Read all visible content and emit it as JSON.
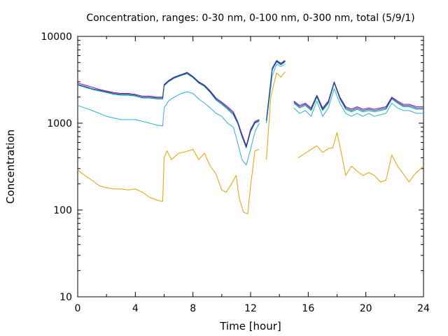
{
  "chart_data": {
    "type": "line",
    "title": "Concentration, ranges: 0-30 nm, 0-100 nm, 0-300 nm, total (5/9/1)",
    "xlabel": "Time [hour]",
    "ylabel": "Concentration",
    "xlim": [
      0,
      24
    ],
    "ylim": [
      10,
      10000
    ],
    "yscale": "log",
    "grid": false,
    "legend": "none",
    "xticks": [
      0,
      4,
      8,
      12,
      16,
      20,
      24
    ],
    "xtick_labels": [
      "0",
      "4",
      "8",
      "12",
      "16",
      "20",
      "24"
    ],
    "yticks": [
      10,
      100,
      1000,
      10000
    ],
    "ytick_labels": [
      "10",
      "100",
      "1000",
      "10000"
    ],
    "series": [
      {
        "color": "#e6a000",
        "points": [
          [
            0,
            290
          ],
          [
            0.5,
            250
          ],
          [
            1,
            220
          ],
          [
            1.5,
            190
          ],
          [
            2,
            180
          ],
          [
            2.5,
            175
          ],
          [
            3,
            175
          ],
          [
            3.5,
            170
          ],
          [
            4,
            175
          ],
          [
            4.5,
            160
          ],
          [
            5,
            140
          ],
          [
            5.5,
            130
          ],
          [
            5.9,
            125
          ],
          [
            6,
            400
          ],
          [
            6.2,
            480
          ],
          [
            6.5,
            380
          ],
          [
            7,
            450
          ],
          [
            7.5,
            470
          ],
          [
            8,
            500
          ],
          [
            8.4,
            380
          ],
          [
            8.8,
            450
          ],
          [
            9.2,
            320
          ],
          [
            9.6,
            260
          ],
          [
            10,
            170
          ],
          [
            10.3,
            160
          ],
          [
            10.6,
            190
          ],
          [
            11,
            250
          ],
          [
            11.2,
            140
          ],
          [
            11.5,
            95
          ],
          [
            11.8,
            90
          ],
          [
            12,
            190
          ],
          [
            12.3,
            480
          ],
          [
            12.6,
            500
          ],
          null,
          [
            13.1,
            380
          ],
          [
            13.4,
            2000
          ],
          [
            13.8,
            3800
          ],
          [
            14.1,
            3400
          ],
          [
            14.4,
            3900
          ],
          null,
          [
            15.3,
            400
          ],
          [
            15.8,
            450
          ],
          [
            16.2,
            500
          ],
          [
            16.6,
            550
          ],
          [
            17,
            460
          ],
          [
            17.4,
            510
          ],
          [
            17.7,
            520
          ],
          [
            18,
            780
          ],
          [
            18.3,
            450
          ],
          [
            18.6,
            250
          ],
          [
            19,
            320
          ],
          [
            19.4,
            280
          ],
          [
            19.8,
            250
          ],
          [
            20.2,
            270
          ],
          [
            20.6,
            250
          ],
          [
            21,
            210
          ],
          [
            21.4,
            220
          ],
          [
            21.8,
            430
          ],
          [
            22.2,
            320
          ],
          [
            22.6,
            260
          ],
          [
            23,
            210
          ],
          [
            23.4,
            260
          ],
          [
            24,
            320
          ]
        ]
      },
      {
        "color": "#2ab0d8",
        "points": [
          [
            0,
            1600
          ],
          [
            0.5,
            1500
          ],
          [
            1,
            1400
          ],
          [
            1.5,
            1300
          ],
          [
            2,
            1200
          ],
          [
            2.5,
            1150
          ],
          [
            3,
            1100
          ],
          [
            3.5,
            1100
          ],
          [
            4,
            1100
          ],
          [
            4.5,
            1050
          ],
          [
            5,
            1000
          ],
          [
            5.5,
            950
          ],
          [
            5.9,
            930
          ],
          [
            6,
            1500
          ],
          [
            6.3,
            1800
          ],
          [
            6.7,
            2000
          ],
          [
            7.2,
            2200
          ],
          [
            7.6,
            2300
          ],
          [
            8,
            2200
          ],
          [
            8.4,
            1900
          ],
          [
            8.8,
            1700
          ],
          [
            9.2,
            1500
          ],
          [
            9.6,
            1300
          ],
          [
            10,
            1200
          ],
          [
            10.4,
            1000
          ],
          [
            10.8,
            900
          ],
          [
            11.1,
            600
          ],
          [
            11.4,
            380
          ],
          [
            11.7,
            330
          ],
          [
            12,
            500
          ],
          [
            12.3,
            800
          ],
          [
            12.6,
            1000
          ],
          null,
          [
            13.1,
            1000
          ],
          [
            13.5,
            3500
          ],
          [
            13.8,
            4800
          ],
          [
            14.1,
            4500
          ],
          [
            14.4,
            4800
          ],
          null,
          [
            15,
            1500
          ],
          [
            15.4,
            1300
          ],
          [
            15.8,
            1400
          ],
          [
            16.2,
            1200
          ],
          [
            16.6,
            1800
          ],
          [
            17,
            1200
          ],
          [
            17.4,
            1500
          ],
          [
            17.8,
            2500
          ],
          [
            18.2,
            1700
          ],
          [
            18.6,
            1300
          ],
          [
            19,
            1200
          ],
          [
            19.4,
            1300
          ],
          [
            19.8,
            1200
          ],
          [
            20.2,
            1300
          ],
          [
            20.6,
            1200
          ],
          [
            21,
            1250
          ],
          [
            21.4,
            1300
          ],
          [
            21.8,
            1700
          ],
          [
            22.2,
            1500
          ],
          [
            22.6,
            1400
          ],
          [
            23,
            1400
          ],
          [
            23.5,
            1300
          ],
          [
            24,
            1300
          ]
        ]
      },
      {
        "color": "#009e73",
        "points": [
          [
            0,
            2750
          ],
          [
            0.5,
            2600
          ],
          [
            1,
            2450
          ],
          [
            1.5,
            2350
          ],
          [
            2,
            2250
          ],
          [
            2.5,
            2150
          ],
          [
            3,
            2100
          ],
          [
            3.5,
            2100
          ],
          [
            4,
            2050
          ],
          [
            4.5,
            1950
          ],
          [
            5,
            1950
          ],
          [
            5.5,
            1900
          ],
          [
            5.9,
            1900
          ],
          [
            6,
            2700
          ],
          [
            6.3,
            3000
          ],
          [
            6.7,
            3300
          ],
          [
            7.2,
            3550
          ],
          [
            7.6,
            3700
          ],
          [
            8,
            3350
          ],
          [
            8.4,
            2900
          ],
          [
            8.8,
            2650
          ],
          [
            9.2,
            2250
          ],
          [
            9.6,
            1850
          ],
          [
            10,
            1650
          ],
          [
            10.4,
            1450
          ],
          [
            10.8,
            1250
          ],
          [
            11.1,
            1000
          ],
          [
            11.4,
            700
          ],
          [
            11.7,
            520
          ],
          [
            12,
            800
          ],
          [
            12.3,
            1000
          ],
          [
            12.6,
            1050
          ],
          null,
          [
            13.1,
            1050
          ],
          [
            13.5,
            4100
          ],
          [
            13.8,
            5100
          ],
          [
            14.1,
            4700
          ],
          [
            14.4,
            5100
          ],
          null,
          [
            15,
            1700
          ],
          [
            15.4,
            1500
          ],
          [
            15.8,
            1600
          ],
          [
            16.2,
            1400
          ],
          [
            16.6,
            2000
          ],
          [
            17,
            1400
          ],
          [
            17.4,
            1700
          ],
          [
            17.8,
            2900
          ],
          [
            18.2,
            1900
          ],
          [
            18.6,
            1450
          ],
          [
            19,
            1350
          ],
          [
            19.4,
            1450
          ],
          [
            19.8,
            1350
          ],
          [
            20.2,
            1400
          ],
          [
            20.6,
            1350
          ],
          [
            21,
            1400
          ],
          [
            21.4,
            1450
          ],
          [
            21.8,
            1900
          ],
          [
            22.2,
            1700
          ],
          [
            22.6,
            1550
          ],
          [
            23,
            1550
          ],
          [
            23.5,
            1450
          ],
          [
            24,
            1450
          ]
        ]
      },
      {
        "color": "#9400d3",
        "points": [
          [
            0,
            2900
          ],
          [
            0.5,
            2750
          ],
          [
            1,
            2600
          ],
          [
            1.5,
            2450
          ],
          [
            2,
            2350
          ],
          [
            2.5,
            2250
          ],
          [
            3,
            2200
          ],
          [
            3.5,
            2200
          ],
          [
            4,
            2150
          ],
          [
            4.5,
            2050
          ],
          [
            5,
            2050
          ],
          [
            5.5,
            2000
          ],
          [
            5.9,
            2000
          ],
          [
            6,
            2800
          ],
          [
            6.3,
            3100
          ],
          [
            6.7,
            3400
          ],
          [
            7.2,
            3650
          ],
          [
            7.6,
            3850
          ],
          [
            8,
            3450
          ],
          [
            8.4,
            3000
          ],
          [
            8.8,
            2750
          ],
          [
            9.2,
            2350
          ],
          [
            9.6,
            1950
          ],
          [
            10,
            1750
          ],
          [
            10.4,
            1550
          ],
          [
            10.8,
            1350
          ],
          [
            11.1,
            1050
          ],
          [
            11.4,
            750
          ],
          [
            11.7,
            550
          ],
          [
            12,
            850
          ],
          [
            12.3,
            1050
          ],
          [
            12.6,
            1100
          ],
          null,
          [
            13.1,
            1100
          ],
          [
            13.5,
            4300
          ],
          [
            13.8,
            5300
          ],
          [
            14.1,
            4900
          ],
          [
            14.4,
            5300
          ],
          null,
          [
            15,
            1800
          ],
          [
            15.4,
            1600
          ],
          [
            15.8,
            1700
          ],
          [
            16.2,
            1500
          ],
          [
            16.6,
            2100
          ],
          [
            17,
            1500
          ],
          [
            17.4,
            1800
          ],
          [
            17.8,
            3000
          ],
          [
            18.2,
            2000
          ],
          [
            18.6,
            1550
          ],
          [
            19,
            1450
          ],
          [
            19.4,
            1550
          ],
          [
            19.8,
            1450
          ],
          [
            20.2,
            1500
          ],
          [
            20.6,
            1450
          ],
          [
            21,
            1500
          ],
          [
            21.4,
            1550
          ],
          [
            21.8,
            2000
          ],
          [
            22.2,
            1800
          ],
          [
            22.6,
            1650
          ],
          [
            23,
            1650
          ],
          [
            23.5,
            1550
          ],
          [
            24,
            1550
          ]
        ]
      },
      {
        "color": "#0a4f8f",
        "points": [
          [
            0,
            2800
          ],
          [
            0.5,
            2650
          ],
          [
            1,
            2500
          ],
          [
            1.5,
            2400
          ],
          [
            2,
            2300
          ],
          [
            2.5,
            2200
          ],
          [
            3,
            2150
          ],
          [
            3.5,
            2150
          ],
          [
            4,
            2100
          ],
          [
            4.5,
            2000
          ],
          [
            5,
            2000
          ],
          [
            5.5,
            1950
          ],
          [
            5.9,
            1950
          ],
          [
            6,
            2750
          ],
          [
            6.3,
            3050
          ],
          [
            6.7,
            3350
          ],
          [
            7.2,
            3600
          ],
          [
            7.6,
            3800
          ],
          [
            8,
            3400
          ],
          [
            8.4,
            2950
          ],
          [
            8.8,
            2700
          ],
          [
            9.2,
            2300
          ],
          [
            9.6,
            1900
          ],
          [
            10,
            1700
          ],
          [
            10.4,
            1500
          ],
          [
            10.8,
            1300
          ],
          [
            11.1,
            1020
          ],
          [
            11.4,
            720
          ],
          [
            11.7,
            530
          ],
          [
            12,
            820
          ],
          [
            12.3,
            1020
          ],
          [
            12.6,
            1080
          ],
          null,
          [
            13.1,
            1080
          ],
          [
            13.5,
            4200
          ],
          [
            13.8,
            5200
          ],
          [
            14.1,
            4800
          ],
          [
            14.4,
            5200
          ],
          null,
          [
            15,
            1750
          ],
          [
            15.4,
            1550
          ],
          [
            15.8,
            1650
          ],
          [
            16.2,
            1450
          ],
          [
            16.6,
            2050
          ],
          [
            17,
            1450
          ],
          [
            17.4,
            1750
          ],
          [
            17.8,
            2950
          ],
          [
            18.2,
            1950
          ],
          [
            18.6,
            1500
          ],
          [
            19,
            1400
          ],
          [
            19.4,
            1500
          ],
          [
            19.8,
            1400
          ],
          [
            20.2,
            1450
          ],
          [
            20.6,
            1400
          ],
          [
            21,
            1450
          ],
          [
            21.4,
            1500
          ],
          [
            21.8,
            1950
          ],
          [
            22.2,
            1750
          ],
          [
            22.6,
            1600
          ],
          [
            23,
            1600
          ],
          [
            23.5,
            1500
          ],
          [
            24,
            1500
          ]
        ]
      }
    ]
  }
}
